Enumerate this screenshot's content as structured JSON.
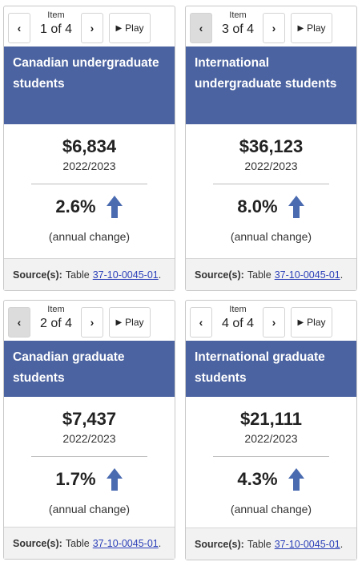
{
  "common": {
    "item_label": "Item",
    "play_label": "Play",
    "prev_glyph": "‹",
    "next_glyph": "›",
    "play_glyph": "▶",
    "annual_label": "(annual change)",
    "source_label": "Source(s):",
    "source_text": "Table",
    "source_link": "37-10-0045-01",
    "source_end": ".",
    "header_color": "#4b63a0",
    "arrow_color": "#4a6bb0",
    "arrow_icon": "up-arrow-icon"
  },
  "cards": [
    {
      "item": "1 of 4",
      "title": "Canadian undergraduate students",
      "value": "$6,834",
      "period": "2022/2023",
      "change": "2.6%"
    },
    {
      "item": "3 of 4",
      "title": "International undergraduate students",
      "value": "$36,123",
      "period": "2022/2023",
      "change": "8.0%"
    },
    {
      "item": "2 of 4",
      "title": "Canadian graduate students",
      "value": "$7,437",
      "period": "2022/2023",
      "change": "1.7%"
    },
    {
      "item": "4 of 4",
      "title": "International graduate students",
      "value": "$21,111",
      "period": "2022/2023",
      "change": "4.3%"
    }
  ]
}
